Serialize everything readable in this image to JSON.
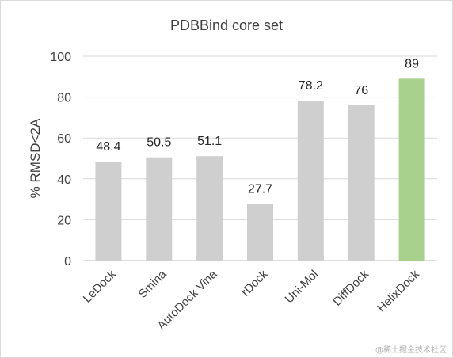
{
  "chart_data": {
    "type": "bar",
    "title": "PDBBind core set",
    "ylabel": "% RMSD<2A",
    "xlabel": "",
    "ylim": [
      0,
      100
    ],
    "yticks": [
      0,
      20,
      40,
      60,
      80,
      100
    ],
    "categories": [
      "LeDock",
      "Smina",
      "AutoDock Vina",
      "rDock",
      "Uni-Mol",
      "DiffDock",
      "HelixDock"
    ],
    "values": [
      48.4,
      50.5,
      51.1,
      27.7,
      78.2,
      76,
      89
    ],
    "value_labels": [
      "48.4",
      "50.5",
      "51.1",
      "27.7",
      "78.2",
      "76",
      "89"
    ],
    "colors": [
      "#d0cfcf",
      "#d0cfcf",
      "#d0cfcf",
      "#d0cfcf",
      "#d0cfcf",
      "#d0cfcf",
      "#a9d18e"
    ],
    "grid": true,
    "legend": "none"
  },
  "watermark": "@稀土掘金技术社区"
}
